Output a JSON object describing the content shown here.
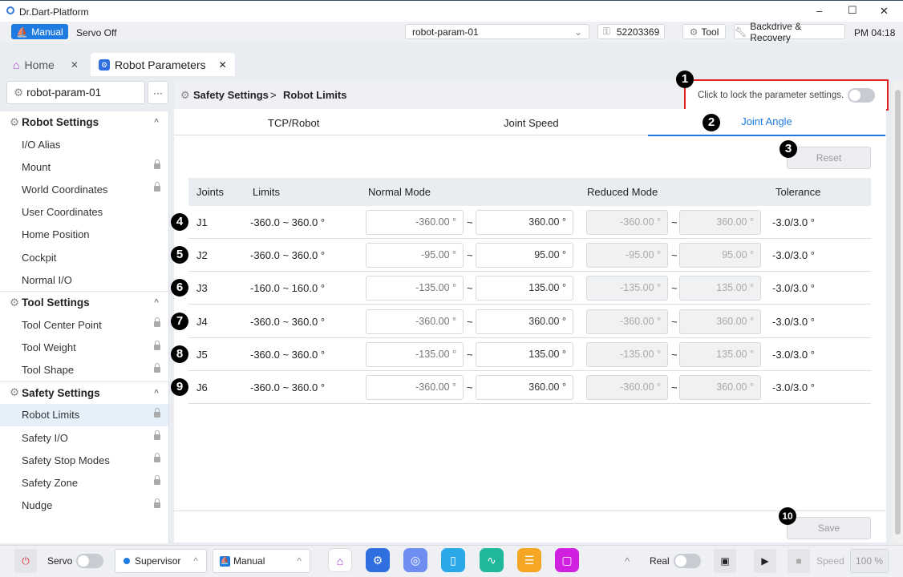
{
  "window": {
    "title": "Dr.Dart-Platform",
    "minimize": "–",
    "maximize": "☐",
    "close": "✕"
  },
  "toolbar": {
    "mode": "Manual",
    "servo_status": "Servo Off",
    "robot_select": "robot-param-01",
    "serial": "52203369",
    "tool": "Tool",
    "backdrive": "Backdrive & Recovery",
    "time": "PM 04:18"
  },
  "tabs": [
    {
      "label": "Home"
    },
    {
      "label": "Robot Parameters"
    }
  ],
  "sidebar": {
    "param_name": "robot-param-01",
    "more": "···",
    "sections": [
      {
        "title": "Robot Settings",
        "items": [
          {
            "label": "I/O Alias",
            "locked": false
          },
          {
            "label": "Mount",
            "locked": true
          },
          {
            "label": "World Coordinates",
            "locked": true
          },
          {
            "label": "User Coordinates",
            "locked": false
          },
          {
            "label": "Home Position",
            "locked": false
          },
          {
            "label": "Cockpit",
            "locked": false
          },
          {
            "label": "Normal I/O",
            "locked": false
          }
        ]
      },
      {
        "title": "Tool Settings",
        "items": [
          {
            "label": "Tool Center Point",
            "locked": true
          },
          {
            "label": "Tool Weight",
            "locked": true
          },
          {
            "label": "Tool Shape",
            "locked": true
          }
        ]
      },
      {
        "title": "Safety Settings",
        "items": [
          {
            "label": "Robot Limits",
            "locked": true,
            "active": true
          },
          {
            "label": "Safety I/O",
            "locked": true
          },
          {
            "label": "Safety Stop Modes",
            "locked": true
          },
          {
            "label": "Safety Zone",
            "locked": true
          },
          {
            "label": "Nudge",
            "locked": true
          }
        ]
      }
    ]
  },
  "breadcrumb": {
    "section": "Safety Settings",
    "sep": ">",
    "page": "Robot Limits"
  },
  "lock_hint": "Click to lock the parameter settings.",
  "subtabs": [
    "TCP/Robot",
    "Joint Speed",
    "Joint Angle"
  ],
  "reset": "Reset",
  "save": "Save",
  "table": {
    "headers": [
      "Joints",
      "Limits",
      "Normal Mode",
      "Reduced Mode",
      "Tolerance"
    ],
    "sep": "~",
    "rows": [
      {
        "joint": "J1",
        "limits": "-360.0 ~ 360.0 °",
        "nmin": "-360.00 °",
        "nmax": "360.00 °",
        "rmin": "-360.00 °",
        "rmax": "360.00 °",
        "tol": "-3.0/3.0 °"
      },
      {
        "joint": "J2",
        "limits": "-360.0 ~ 360.0 °",
        "nmin": "-95.00 °",
        "nmax": "95.00 °",
        "rmin": "-95.00 °",
        "rmax": "95.00 °",
        "tol": "-3.0/3.0 °"
      },
      {
        "joint": "J3",
        "limits": "-160.0 ~ 160.0 °",
        "nmin": "-135.00 °",
        "nmax": "135.00 °",
        "rmin": "-135.00 °",
        "rmax": "135.00 °",
        "tol": "-3.0/3.0 °"
      },
      {
        "joint": "J4",
        "limits": "-360.0 ~ 360.0 °",
        "nmin": "-360.00 °",
        "nmax": "360.00 °",
        "rmin": "-360.00 °",
        "rmax": "360.00 °",
        "tol": "-3.0/3.0 °"
      },
      {
        "joint": "J5",
        "limits": "-360.0 ~ 360.0 °",
        "nmin": "-135.00 °",
        "nmax": "135.00 °",
        "rmin": "-135.00 °",
        "rmax": "135.00 °",
        "tol": "-3.0/3.0 °"
      },
      {
        "joint": "J6",
        "limits": "-360.0 ~ 360.0 °",
        "nmin": "-360.00 °",
        "nmax": "360.00 °",
        "rmin": "-360.00 °",
        "rmax": "360.00 °",
        "tol": "-3.0/3.0 °"
      }
    ]
  },
  "badges": [
    "1",
    "2",
    "3",
    "4",
    "5",
    "6",
    "7",
    "8",
    "9",
    "10"
  ],
  "bottom": {
    "servo": "Servo",
    "user": "Supervisor",
    "mode": "Manual",
    "real": "Real",
    "speed_label": "Speed",
    "speed": "100 %"
  },
  "colors": {
    "accent": "#1e7be0",
    "highlight": "#e02020"
  }
}
